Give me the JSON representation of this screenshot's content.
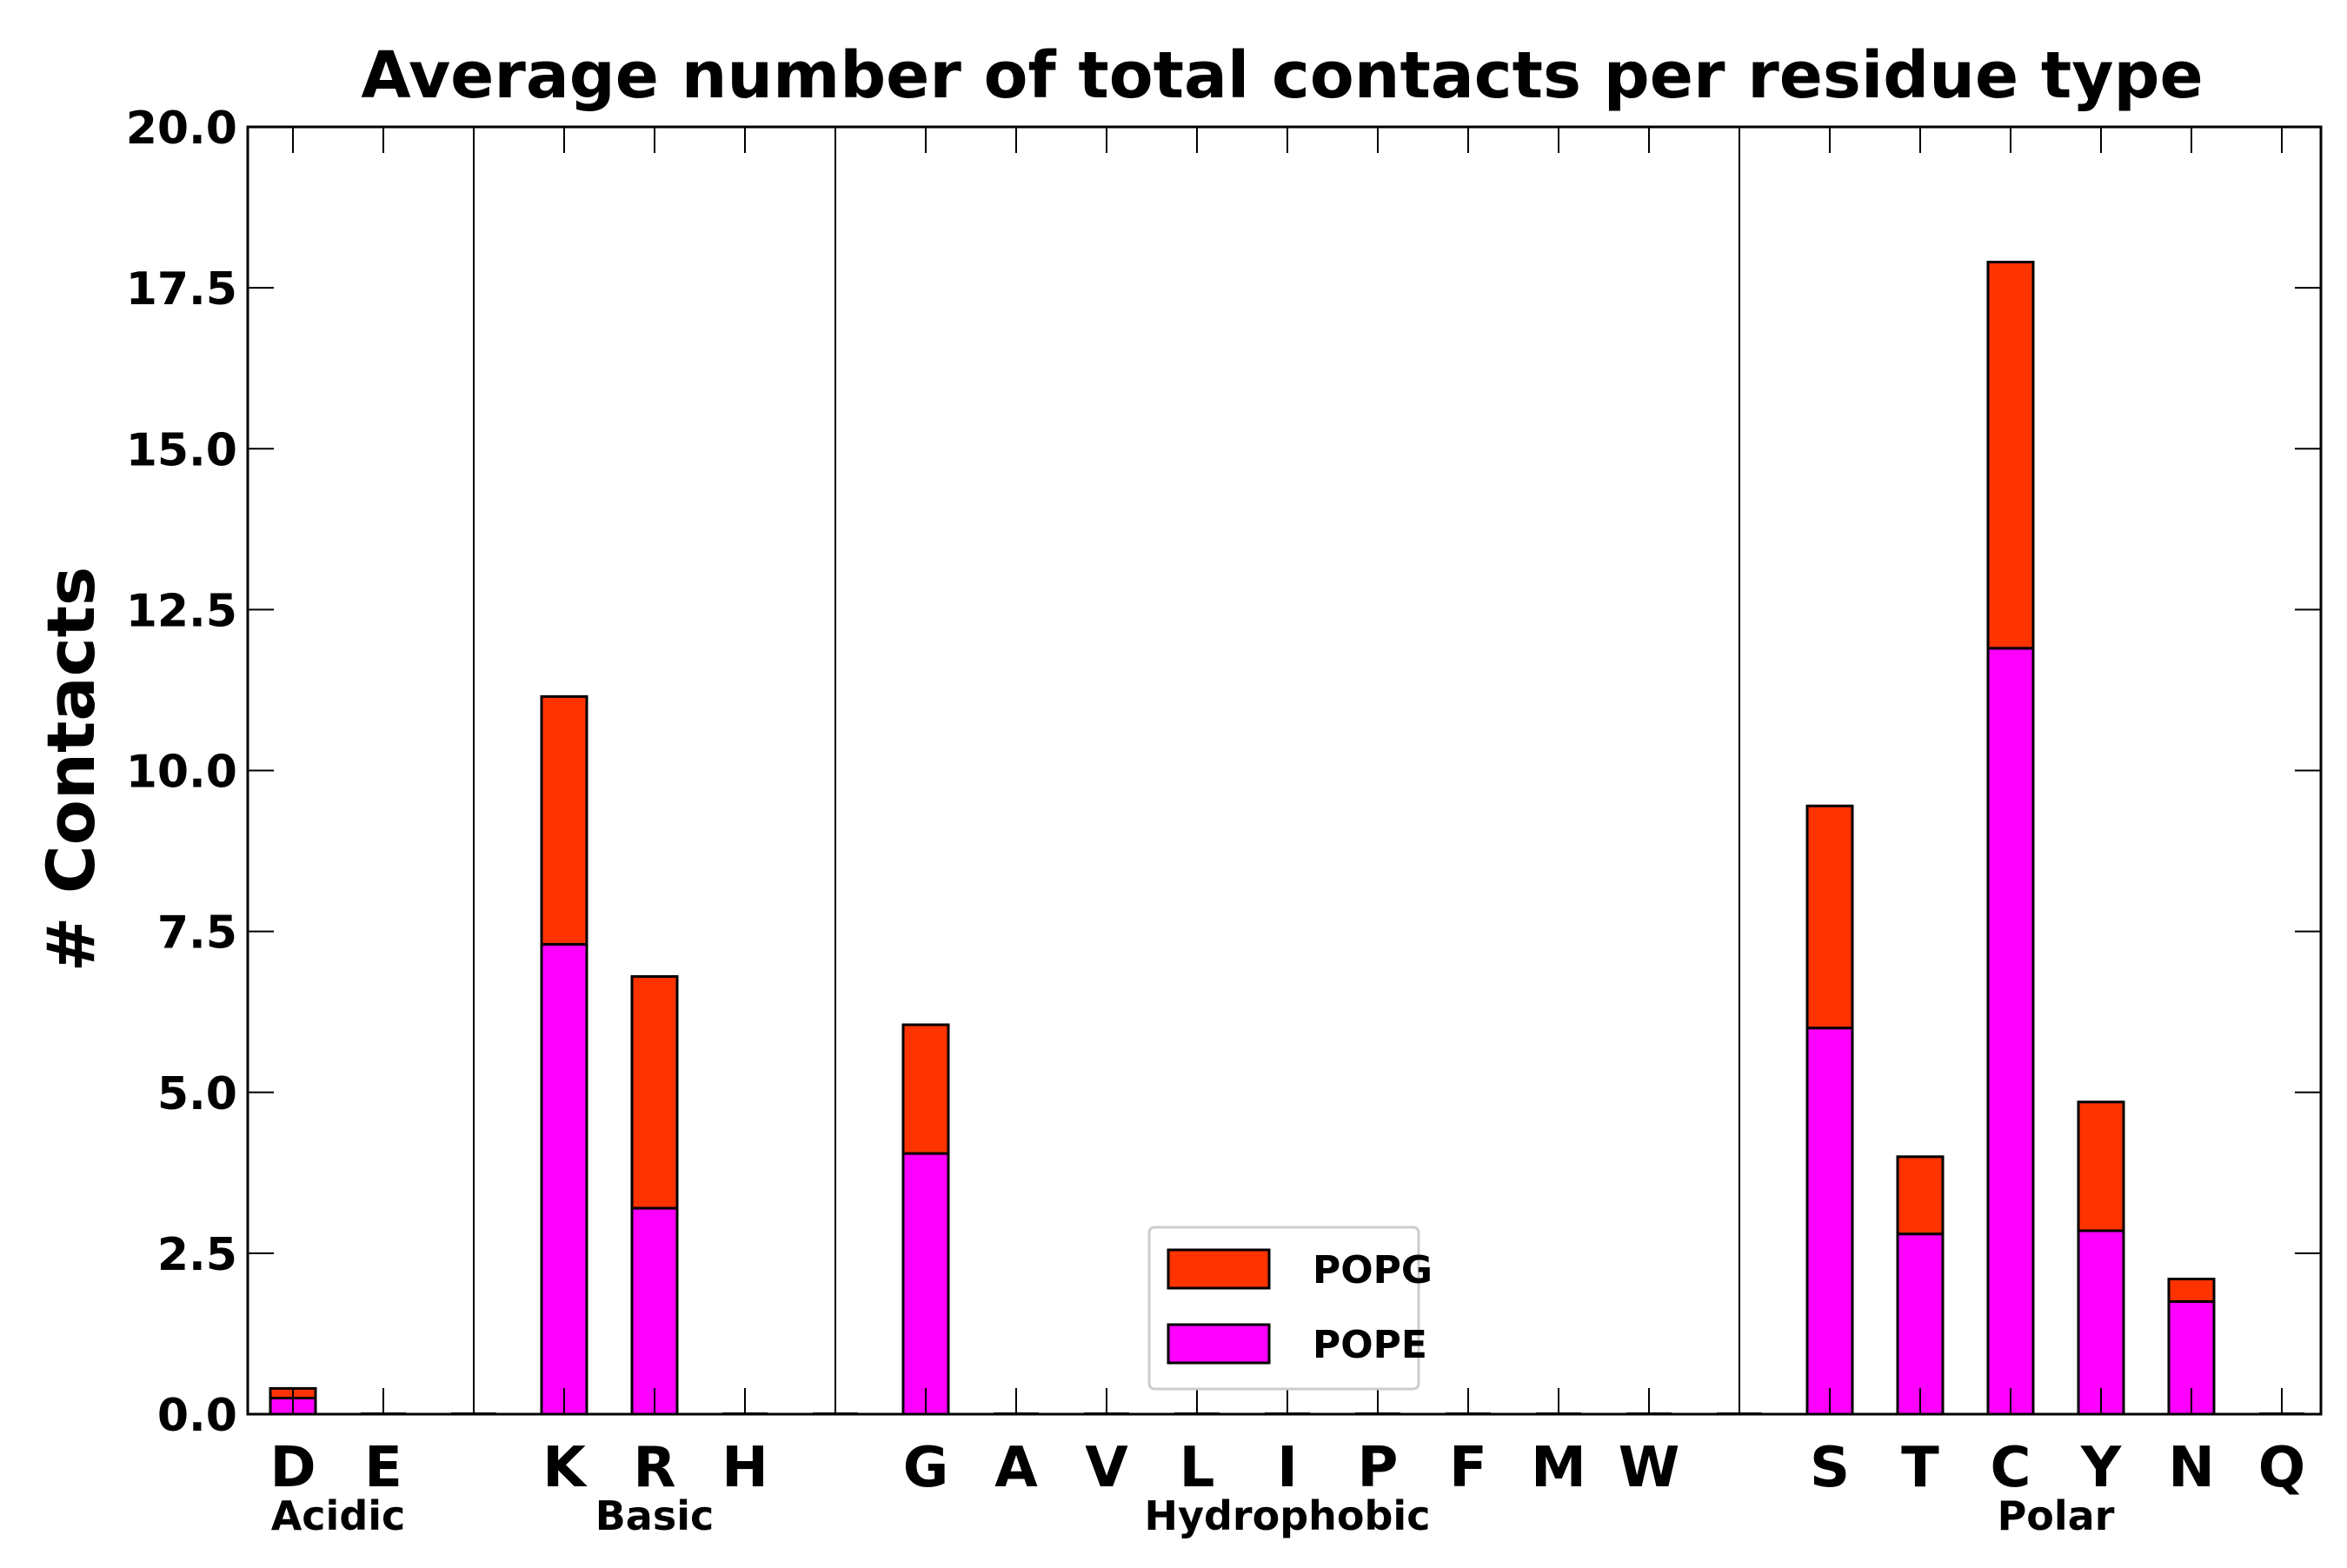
{
  "chart_data": {
    "type": "bar",
    "stacked": true,
    "title": "Average number of total contacts per residue type",
    "xlabel": "",
    "ylabel": "# Contacts",
    "ylim": [
      0,
      20
    ],
    "yticks": [
      0.0,
      2.5,
      5.0,
      7.5,
      10.0,
      12.5,
      15.0,
      17.5,
      20.0
    ],
    "ytick_labels": [
      "0.0",
      "2.5",
      "5.0",
      "7.5",
      "10.0",
      "12.5",
      "15.0",
      "17.5",
      "20.0"
    ],
    "categories": [
      "D",
      "E",
      "K",
      "R",
      "H",
      "G",
      "A",
      "V",
      "L",
      "I",
      "P",
      "F",
      "M",
      "W",
      "S",
      "T",
      "C",
      "Y",
      "N",
      "Q"
    ],
    "groups": [
      {
        "name": "Acidic",
        "members": [
          "D",
          "E"
        ]
      },
      {
        "name": "Basic",
        "members": [
          "K",
          "R",
          "H"
        ]
      },
      {
        "name": "Hydrophobic",
        "members": [
          "G",
          "A",
          "V",
          "L",
          "I",
          "P",
          "F",
          "M",
          "W"
        ]
      },
      {
        "name": "Polar",
        "members": [
          "S",
          "T",
          "C",
          "Y",
          "N",
          "Q"
        ]
      }
    ],
    "series": [
      {
        "name": "POPE",
        "color": "#ff00ff",
        "values": [
          0.25,
          0,
          7.3,
          3.2,
          0,
          4.05,
          0,
          0,
          0,
          0,
          0,
          0,
          0,
          0,
          6.0,
          2.8,
          11.9,
          2.85,
          1.75,
          0
        ]
      },
      {
        "name": "POPG",
        "color": "#ff3300",
        "values": [
          0.15,
          0,
          3.85,
          3.6,
          0,
          2.0,
          0,
          0,
          0,
          0,
          0,
          0,
          0,
          0,
          3.45,
          1.2,
          6.0,
          2.0,
          0.35,
          0
        ]
      }
    ],
    "legend": {
      "position": "bottom-center",
      "entries": [
        "POPG",
        "POPE"
      ]
    },
    "grid": false
  }
}
